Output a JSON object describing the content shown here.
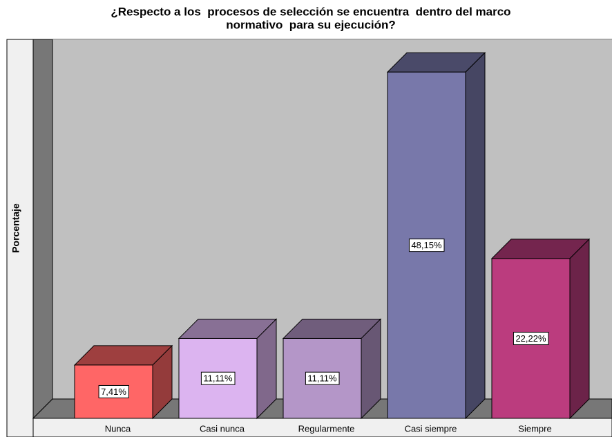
{
  "chart_data": {
    "type": "bar3d",
    "title": [
      "¿Respecto a los  procesos de selección se encuentra  dentro del marco",
      "normativo  para su ejecución?"
    ],
    "y_label": "Porcentaje",
    "categories": [
      "Nunca",
      "Casi nunca",
      "Regularmente",
      "Casi siempre",
      "Siempre"
    ],
    "values": [
      7.41,
      11.11,
      11.11,
      48.15,
      22.22
    ],
    "value_labels": [
      "7,41%",
      "11,11%",
      "11,11%",
      "48,15%",
      "22,22%"
    ],
    "colors": [
      "#ff6666",
      "#dcb4f0",
      "#b496c8",
      "#7878aa",
      "#bb3c7e"
    ],
    "ylim": [
      0,
      50
    ]
  }
}
